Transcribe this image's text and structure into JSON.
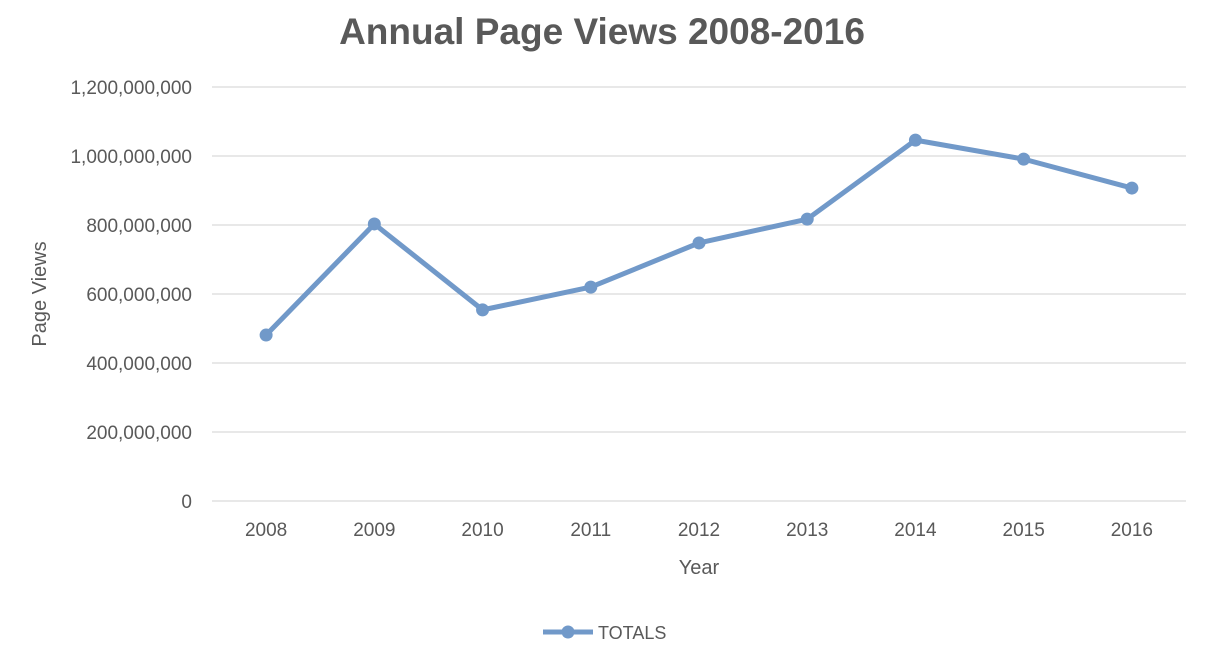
{
  "chart_data": {
    "type": "line",
    "title": "Annual Page Views 2008-2016",
    "xlabel": "Year",
    "ylabel": "Page Views",
    "categories": [
      "2008",
      "2009",
      "2010",
      "2011",
      "2012",
      "2013",
      "2014",
      "2015",
      "2016"
    ],
    "series": [
      {
        "name": "TOTALS",
        "values": [
          481000000,
          803000000,
          554000000,
          620000000,
          748000000,
          817000000,
          1046000000,
          991000000,
          907000000
        ],
        "color": "#7199C9"
      }
    ],
    "ylim": [
      0,
      1200000000
    ],
    "yticks": [
      0,
      200000000,
      400000000,
      600000000,
      800000000,
      1000000000,
      1200000000
    ],
    "ytick_labels": [
      "0",
      "200,000,000",
      "400,000,000",
      "600,000,000",
      "800,000,000",
      "1,000,000,000",
      "1,200,000,000"
    ],
    "grid": true,
    "legend": "bottom",
    "gridline_color": "#D9D9D9"
  }
}
